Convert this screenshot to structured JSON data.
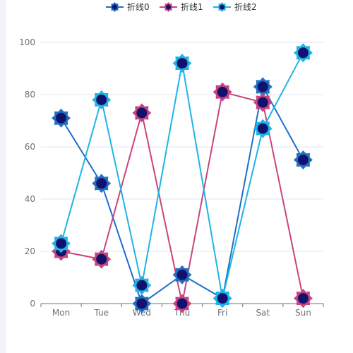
{
  "chart_data": {
    "type": "line",
    "categories": [
      "Mon",
      "Tue",
      "Wed",
      "Thu",
      "Fri",
      "Sat",
      "Sun"
    ],
    "ylim": [
      0,
      100
    ],
    "yticks": [
      0,
      20,
      40,
      60,
      80,
      100
    ],
    "grid": true,
    "legend_position": "top-center",
    "series": [
      {
        "name": "折线0",
        "values": [
          71,
          46,
          0,
          11,
          2,
          83,
          55
        ],
        "color": "#1f6fc5",
        "marker": "star"
      },
      {
        "name": "折线1",
        "values": [
          20,
          17,
          73,
          0,
          81,
          77,
          2
        ],
        "color": "#c9447e",
        "marker": "star"
      },
      {
        "name": "折线2",
        "values": [
          23,
          78,
          7,
          92,
          2,
          67,
          96
        ],
        "color": "#1fb4e6",
        "marker": "star"
      }
    ],
    "marker_fill": "#12126e"
  }
}
